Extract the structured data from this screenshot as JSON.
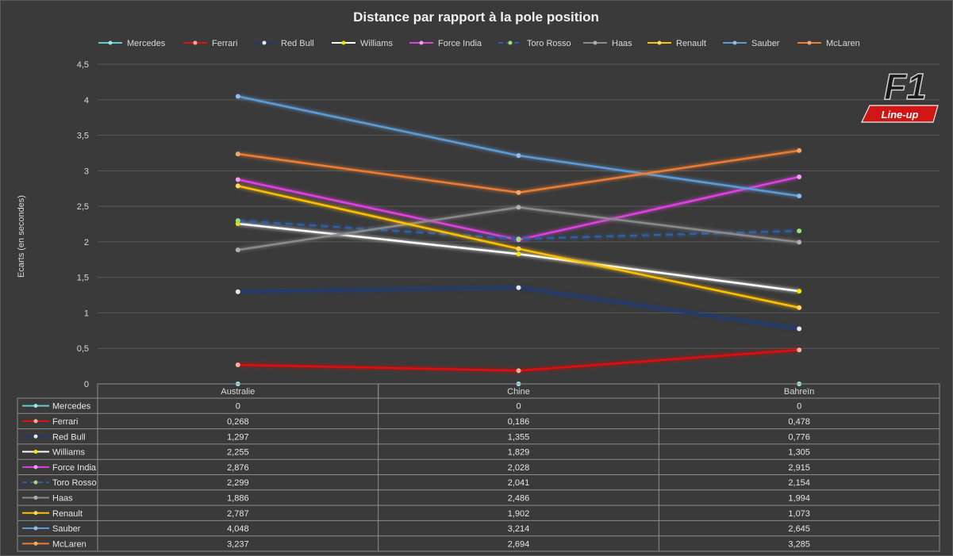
{
  "chart_data": {
    "type": "line",
    "title": "Distance par rapport à la pole position",
    "ylabel": "Ecarts (en secondes)",
    "xlabel": "",
    "categories": [
      "Australie",
      "Chine",
      "Bahreïn"
    ],
    "ylim": [
      0,
      4.5
    ],
    "yticks": [
      0,
      0.5,
      1,
      1.5,
      2,
      2.5,
      3,
      3.5,
      4,
      4.5
    ],
    "ytick_labels": [
      "0",
      "0,5",
      "1",
      "1,5",
      "2",
      "2,5",
      "3",
      "3,5",
      "4",
      "4,5"
    ],
    "grid": true,
    "legend_position": "top",
    "data_table": true,
    "series": [
      {
        "name": "Mercedes",
        "color": "#5ecfcf",
        "marker": "#9fe3e3",
        "dashed": false,
        "values": [
          0,
          0,
          0
        ],
        "labels": [
          "0",
          "0",
          "0"
        ]
      },
      {
        "name": "Ferrari",
        "color": "#e01010",
        "marker": "#ffb0a0",
        "dashed": false,
        "values": [
          0.268,
          0.186,
          0.478
        ],
        "labels": [
          "0,268",
          "0,186",
          "0,478"
        ]
      },
      {
        "name": "Red Bull",
        "color": "#1f3a78",
        "marker": "#e8e8e8",
        "dashed": false,
        "values": [
          1.297,
          1.355,
          0.776
        ],
        "labels": [
          "1,297",
          "1,355",
          "0,776"
        ]
      },
      {
        "name": "Williams",
        "color": "#ffffff",
        "marker": "#f2e400",
        "dashed": false,
        "values": [
          2.255,
          1.829,
          1.305
        ],
        "labels": [
          "2,255",
          "1,829",
          "1,305"
        ]
      },
      {
        "name": "Force India",
        "color": "#e040e0",
        "marker": "#f0a0f0",
        "dashed": false,
        "values": [
          2.876,
          2.028,
          2.915
        ],
        "labels": [
          "2,876",
          "2,028",
          "2,915"
        ]
      },
      {
        "name": "Toro Rosso",
        "color": "#2f5fa8",
        "marker": "#a0e070",
        "dashed": true,
        "values": [
          2.299,
          2.041,
          2.154
        ],
        "labels": [
          "2,299",
          "2,041",
          "2,154"
        ]
      },
      {
        "name": "Haas",
        "color": "#8a8a8a",
        "marker": "#b0b0b0",
        "dashed": false,
        "values": [
          1.886,
          2.486,
          1.994
        ],
        "labels": [
          "1,886",
          "2,486",
          "1,994"
        ]
      },
      {
        "name": "Renault",
        "color": "#ffc000",
        "marker": "#ffd860",
        "dashed": false,
        "values": [
          2.787,
          1.902,
          1.073
        ],
        "labels": [
          "2,787",
          "1,902",
          "1,073"
        ]
      },
      {
        "name": "Sauber",
        "color": "#5b9bd5",
        "marker": "#8fbde8",
        "dashed": false,
        "values": [
          4.048,
          3.214,
          2.645
        ],
        "labels": [
          "4,048",
          "3,214",
          "2,645"
        ]
      },
      {
        "name": "McLaren",
        "color": "#ed7d31",
        "marker": "#f4a870",
        "dashed": false,
        "values": [
          3.237,
          2.694,
          3.285
        ],
        "labels": [
          "3,237",
          "2,694",
          "3,285"
        ]
      }
    ]
  },
  "logo": {
    "mark": "F1",
    "tagline": "Line-up"
  },
  "colors": {
    "background": "#3a3a3a",
    "grid": "#595959",
    "table_border": "#8c8c8c",
    "text": "#d9d9d9"
  }
}
